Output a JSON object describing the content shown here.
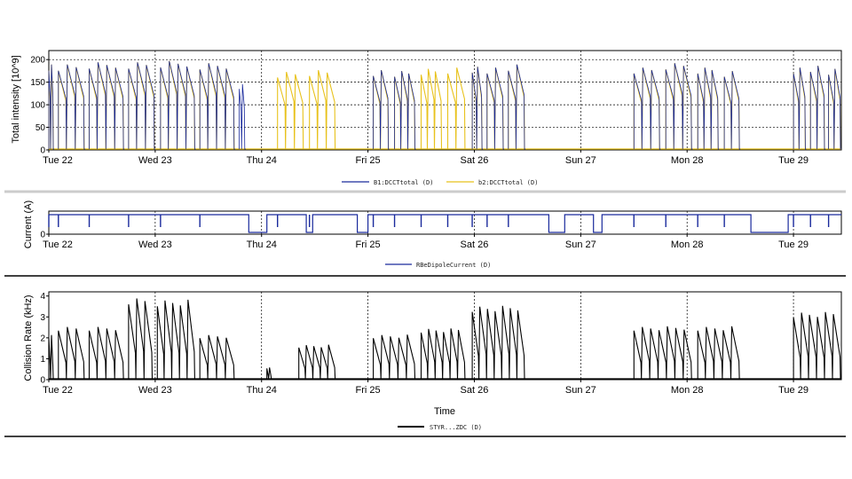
{
  "days": [
    "Tue 22",
    "Wed 23",
    "Thu 24",
    "Fri 25",
    "Sat 26",
    "Sun 27",
    "Mon 28",
    "Tue 29"
  ],
  "colors": {
    "blue": "#1a2a9c",
    "yellow": "#e8c21c",
    "black": "#000000",
    "separator": "#cccccc"
  },
  "chart_data": [
    {
      "type": "line",
      "panel": "intensity",
      "ylabel": "Total intensity [10^9]",
      "xlabel": "",
      "ylim": [
        0,
        220
      ],
      "yticks": [
        "0",
        "50",
        "100",
        "150",
        "200"
      ],
      "ytick_values": [
        0,
        50,
        100,
        150,
        200
      ],
      "xlim": [
        0,
        7.45
      ],
      "grid": "dashed, at each day and at 50/100/150",
      "legend": "bottom-center",
      "series": [
        {
          "name": "B1:DCCTtotal (D)",
          "color": "#1a2a9c",
          "fills": [
            {
              "start": 0.0,
              "end": 0.05,
              "peak": 195
            },
            {
              "start": 0.09,
              "end": 0.34,
              "peak": 195
            },
            {
              "start": 0.38,
              "end": 0.71,
              "peak": 200
            },
            {
              "start": 0.75,
              "end": 1.0,
              "peak": 200
            },
            {
              "start": 1.05,
              "end": 1.38,
              "peak": 203
            },
            {
              "start": 1.42,
              "end": 1.75,
              "peak": 198
            },
            {
              "start": 1.79,
              "end": 1.85,
              "peak": 150
            },
            {
              "start": 3.05,
              "end": 3.2,
              "peak": 182
            },
            {
              "start": 3.25,
              "end": 3.45,
              "peak": 180
            },
            {
              "start": 3.98,
              "end": 4.08,
              "peak": 190
            },
            {
              "start": 4.12,
              "end": 4.28,
              "peak": 188
            },
            {
              "start": 4.32,
              "end": 4.48,
              "peak": 195
            },
            {
              "start": 5.5,
              "end": 5.75,
              "peak": 188
            },
            {
              "start": 5.8,
              "end": 6.05,
              "peak": 198
            },
            {
              "start": 6.1,
              "end": 6.3,
              "peak": 188
            },
            {
              "start": 6.35,
              "end": 6.5,
              "peak": 180
            },
            {
              "start": 7.0,
              "end": 7.12,
              "peak": 188
            },
            {
              "start": 7.16,
              "end": 7.3,
              "peak": 192
            },
            {
              "start": 7.33,
              "end": 7.45,
              "peak": 185
            }
          ]
        },
        {
          "name": "b2:DCCTtotal (D)",
          "color": "#e8c21c",
          "fills": [
            {
              "start": 0.0,
              "end": 0.05,
              "peak": 195
            },
            {
              "start": 0.09,
              "end": 0.34,
              "peak": 195
            },
            {
              "start": 0.38,
              "end": 0.71,
              "peak": 200
            },
            {
              "start": 0.75,
              "end": 1.0,
              "peak": 200
            },
            {
              "start": 1.05,
              "end": 1.38,
              "peak": 203
            },
            {
              "start": 1.42,
              "end": 1.75,
              "peak": 198
            },
            {
              "start": 2.15,
              "end": 2.4,
              "peak": 178
            },
            {
              "start": 2.45,
              "end": 2.7,
              "peak": 182
            },
            {
              "start": 3.05,
              "end": 3.2,
              "peak": 182
            },
            {
              "start": 3.25,
              "end": 3.45,
              "peak": 180
            },
            {
              "start": 3.5,
              "end": 3.7,
              "peak": 185
            },
            {
              "start": 3.75,
              "end": 3.92,
              "peak": 188
            },
            {
              "start": 3.98,
              "end": 4.08,
              "peak": 190
            },
            {
              "start": 4.12,
              "end": 4.28,
              "peak": 188
            },
            {
              "start": 4.32,
              "end": 4.48,
              "peak": 195
            },
            {
              "start": 5.5,
              "end": 5.75,
              "peak": 188
            },
            {
              "start": 5.8,
              "end": 6.05,
              "peak": 198
            },
            {
              "start": 6.1,
              "end": 6.3,
              "peak": 188
            },
            {
              "start": 6.35,
              "end": 6.5,
              "peak": 180
            },
            {
              "start": 7.0,
              "end": 7.12,
              "peak": 188
            },
            {
              "start": 7.16,
              "end": 7.3,
              "peak": 192
            },
            {
              "start": 7.33,
              "end": 7.45,
              "peak": 185
            }
          ]
        }
      ],
      "legend_entries": [
        "B1:DCCTtotal (D)",
        "b2:DCCTtotal (D)"
      ]
    },
    {
      "type": "line",
      "panel": "current",
      "ylabel": "Current (A)",
      "xlabel": "",
      "ylim": [
        0,
        1
      ],
      "yticks": [
        "0"
      ],
      "ytick_values": [
        0
      ],
      "xlim": [
        0,
        7.45
      ],
      "legend": "bottom-center",
      "series": [
        {
          "name": "RBeDipoleCurrent (D)",
          "color": "#1a2a9c",
          "off_intervals": [
            {
              "start": 1.88,
              "end": 2.05
            },
            {
              "start": 2.42,
              "end": 2.48
            },
            {
              "start": 2.9,
              "end": 3.0
            },
            {
              "start": 4.7,
              "end": 4.85
            },
            {
              "start": 5.12,
              "end": 5.2
            },
            {
              "start": 6.6,
              "end": 6.95
            }
          ]
        }
      ],
      "legend_entries": [
        "RBeDipoleCurrent (D)"
      ]
    },
    {
      "type": "line",
      "panel": "collision",
      "ylabel": "Collision Rate (kHz)",
      "xlabel": "Time",
      "ylim": [
        0,
        4.2
      ],
      "yticks": [
        "0",
        "1",
        "2",
        "3",
        "4"
      ],
      "ytick_values": [
        0,
        1,
        2,
        3,
        4
      ],
      "xlim": [
        0,
        7.45
      ],
      "legend": "bottom-center",
      "series": [
        {
          "name": "STYR...ZDC (D)",
          "color": "#000000",
          "fills": [
            {
              "start": 0.0,
              "end": 0.05,
              "peak": 2.2
            },
            {
              "start": 0.09,
              "end": 0.34,
              "peak": 2.6
            },
            {
              "start": 0.38,
              "end": 0.71,
              "peak": 2.6
            },
            {
              "start": 0.75,
              "end": 0.98,
              "peak": 4.0
            },
            {
              "start": 1.02,
              "end": 1.38,
              "peak": 3.9
            },
            {
              "start": 1.42,
              "end": 1.75,
              "peak": 2.2
            },
            {
              "start": 2.05,
              "end": 2.1,
              "peak": 0.6
            },
            {
              "start": 2.35,
              "end": 2.7,
              "peak": 1.7
            },
            {
              "start": 3.05,
              "end": 3.45,
              "peak": 2.2
            },
            {
              "start": 3.5,
              "end": 3.92,
              "peak": 2.5
            },
            {
              "start": 3.98,
              "end": 4.48,
              "peak": 3.6
            },
            {
              "start": 5.5,
              "end": 6.05,
              "peak": 2.6
            },
            {
              "start": 6.1,
              "end": 6.5,
              "peak": 2.6
            },
            {
              "start": 7.0,
              "end": 7.45,
              "peak": 3.3
            }
          ]
        }
      ],
      "legend_entries": [
        "STYR...ZDC (D)"
      ]
    }
  ]
}
